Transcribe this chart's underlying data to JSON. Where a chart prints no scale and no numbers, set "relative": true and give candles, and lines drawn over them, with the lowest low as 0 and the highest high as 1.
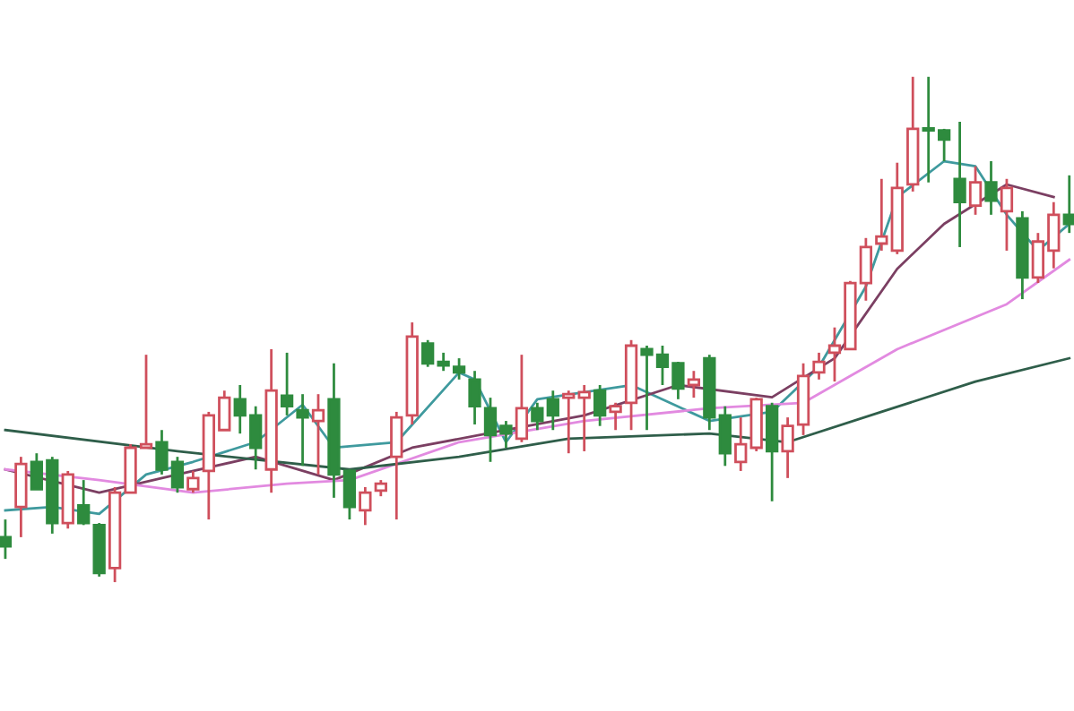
{
  "chart_data": {
    "type": "candlestick",
    "relative": true,
    "legend": false,
    "categories": [
      null,
      null,
      null,
      null,
      null,
      null,
      null,
      null,
      null,
      null,
      null,
      null,
      null,
      null,
      null,
      null,
      null,
      null,
      null,
      null,
      null,
      null,
      null,
      null,
      null,
      null,
      null,
      null,
      null,
      null,
      null,
      null,
      null,
      null,
      null,
      null,
      null,
      null,
      null,
      null,
      null,
      null,
      null,
      null,
      null,
      null,
      null,
      null,
      null,
      null,
      null,
      null,
      null,
      null,
      null,
      null,
      null,
      null,
      null,
      null,
      null,
      null,
      null,
      null,
      null,
      null,
      null,
      null,
      null
    ],
    "ohlc": [
      [
        0.089,
        0.124,
        0.046,
        0.071
      ],
      [
        0.149,
        0.248,
        0.089,
        0.234
      ],
      [
        0.238,
        0.255,
        0.184,
        0.184
      ],
      [
        0.241,
        0.248,
        0.096,
        0.117
      ],
      [
        0.117,
        0.22,
        0.106,
        0.213
      ],
      [
        0.152,
        0.202,
        0.113,
        0.117
      ],
      [
        0.113,
        0.117,
        0.011,
        0.018
      ],
      [
        0.028,
        0.188,
        0,
        0.177
      ],
      [
        0.177,
        0.273,
        0.177,
        0.266
      ],
      [
        0.266,
        0.45,
        0.266,
        0.273
      ],
      [
        0.277,
        0.301,
        0.213,
        0.223
      ],
      [
        0.238,
        0.248,
        0.177,
        0.188
      ],
      [
        0.184,
        0.22,
        0.177,
        0.206
      ],
      [
        0.22,
        0.337,
        0.124,
        0.33
      ],
      [
        0.301,
        0.379,
        0.301,
        0.365
      ],
      [
        0.362,
        0.39,
        0.294,
        0.33
      ],
      [
        0.33,
        0.348,
        0.223,
        0.266
      ],
      [
        0.223,
        0.461,
        0.177,
        0.379
      ],
      [
        0.369,
        0.454,
        0.33,
        0.348
      ],
      [
        0.34,
        0.372,
        0.23,
        0.326
      ],
      [
        0.319,
        0.372,
        0.213,
        0.34
      ],
      [
        0.362,
        0.433,
        0.167,
        0.213
      ],
      [
        0.22,
        0.223,
        0.124,
        0.149
      ],
      [
        0.142,
        0.188,
        0.113,
        0.177
      ],
      [
        0.181,
        0.202,
        0.17,
        0.195
      ],
      [
        0.248,
        0.337,
        0.124,
        0.326
      ],
      [
        0.33,
        0.514,
        0.312,
        0.486
      ],
      [
        0.472,
        0.479,
        0.426,
        0.433
      ],
      [
        0.436,
        0.454,
        0.418,
        0.429
      ],
      [
        0.426,
        0.443,
        0.401,
        0.415
      ],
      [
        0.401,
        0.418,
        0.312,
        0.348
      ],
      [
        0.344,
        0.365,
        0.238,
        0.291
      ],
      [
        0.309,
        0.319,
        0.266,
        0.294
      ],
      [
        0.284,
        0.45,
        0.277,
        0.344
      ],
      [
        0.344,
        0.355,
        0.301,
        0.319
      ],
      [
        0.362,
        0.379,
        0.301,
        0.33
      ],
      [
        0.365,
        0.379,
        0.255,
        0.372
      ],
      [
        0.365,
        0.39,
        0.259,
        0.376
      ],
      [
        0.379,
        0.39,
        0.309,
        0.33
      ],
      [
        0.337,
        0.355,
        0.301,
        0.348
      ],
      [
        0.355,
        0.479,
        0.301,
        0.468
      ],
      [
        0.461,
        0.468,
        0.301,
        0.45
      ],
      [
        0.45,
        0.468,
        0.39,
        0.426
      ],
      [
        0.433,
        0.436,
        0.362,
        0.383
      ],
      [
        0.39,
        0.418,
        0.365,
        0.401
      ],
      [
        0.443,
        0.45,
        0.301,
        0.326
      ],
      [
        0.33,
        0.348,
        0.23,
        0.255
      ],
      [
        0.238,
        0.326,
        0.22,
        0.273
      ],
      [
        0.266,
        0.365,
        0.259,
        0.362
      ],
      [
        0.348,
        0.355,
        0.16,
        0.259
      ],
      [
        0.259,
        0.326,
        0.206,
        0.309
      ],
      [
        0.312,
        0.433,
        0.291,
        0.408
      ],
      [
        0.415,
        0.454,
        0.401,
        0.436
      ],
      [
        0.454,
        0.504,
        0.397,
        0.468
      ],
      [
        0.461,
        0.596,
        0.461,
        0.592
      ],
      [
        0.592,
        0.681,
        0.557,
        0.663
      ],
      [
        0.67,
        0.798,
        0.656,
        0.684
      ],
      [
        0.656,
        0.83,
        0.649,
        0.78
      ],
      [
        0.787,
        1,
        0.773,
        0.897
      ],
      [
        0.897,
        1,
        0.791,
        0.894
      ],
      [
        0.894,
        0.897,
        0.833,
        0.876
      ],
      [
        0.798,
        0.911,
        0.663,
        0.752
      ],
      [
        0.745,
        0.823,
        0.727,
        0.791
      ],
      [
        0.791,
        0.833,
        0.727,
        0.755
      ],
      [
        0.734,
        0.798,
        0.656,
        0.78
      ],
      [
        0.72,
        0.734,
        0.56,
        0.603
      ],
      [
        0.603,
        0.691,
        0.592,
        0.674
      ],
      [
        0.656,
        0.752,
        0.621,
        0.727
      ],
      [
        0.727,
        0.805,
        0.691,
        0.709
      ]
    ],
    "series": [
      {
        "type": "line",
        "color": "#3f9a9e",
        "values": [
          0.142,
          null,
          null,
          0.149,
          null,
          null,
          0.135,
          null,
          null,
          0.213,
          null,
          null,
          0.238,
          null,
          null,
          null,
          0.277,
          null,
          null,
          0.351,
          null,
          0.266,
          null,
          null,
          null,
          0.277,
          null,
          null,
          null,
          0.415,
          0.401,
          null,
          0.277,
          null,
          0.362,
          null,
          null,
          null,
          null,
          null,
          0.39,
          null,
          null,
          null,
          null,
          0.319,
          null,
          null,
          null,
          0.337,
          null,
          null,
          0.426,
          null,
          null,
          0.585,
          null,
          0.762,
          null,
          null,
          0.833,
          null,
          0.823,
          null,
          0.727,
          null,
          0.656,
          null,
          0.709
        ]
      },
      {
        "type": "line",
        "color": "#7b3f62",
        "values": [
          0.223,
          null,
          null,
          null,
          null,
          null,
          0.177,
          null,
          null,
          null,
          null,
          0.213,
          null,
          null,
          null,
          null,
          0.248,
          null,
          null,
          null,
          null,
          0.202,
          null,
          null,
          null,
          null,
          0.266,
          null,
          null,
          null,
          null,
          null,
          0.301,
          null,
          null,
          null,
          null,
          0.33,
          null,
          null,
          null,
          null,
          null,
          0.39,
          null,
          null,
          null,
          null,
          null,
          0.366,
          null,
          null,
          null,
          0.443,
          null,
          null,
          null,
          0.62,
          null,
          null,
          0.709,
          null,
          null,
          null,
          0.787,
          null,
          null,
          0.762,
          null
        ]
      },
      {
        "type": "line",
        "color": "#e28ae0",
        "values": [
          0.223,
          null,
          null,
          null,
          null,
          null,
          0.202,
          null,
          null,
          null,
          null,
          null,
          0.177,
          null,
          null,
          null,
          null,
          null,
          0.195,
          null,
          null,
          null,
          0.202,
          null,
          null,
          null,
          null,
          null,
          null,
          0.277,
          null,
          null,
          null,
          null,
          null,
          null,
          null,
          0.319,
          null,
          null,
          null,
          null,
          null,
          null,
          null,
          0.344,
          null,
          null,
          null,
          null,
          null,
          0.355,
          null,
          null,
          null,
          null,
          null,
          0.461,
          null,
          null,
          null,
          null,
          null,
          null,
          0.55,
          null,
          null,
          null,
          0.638
        ]
      },
      {
        "type": "line",
        "color": "#2f5e4a",
        "values": [
          0.301,
          null,
          null,
          null,
          null,
          null,
          null,
          null,
          null,
          null,
          null,
          0.259,
          null,
          null,
          null,
          null,
          null,
          null,
          null,
          null,
          null,
          null,
          0.223,
          null,
          null,
          null,
          null,
          null,
          null,
          0.248,
          null,
          null,
          null,
          null,
          null,
          null,
          0.284,
          null,
          null,
          null,
          null,
          null,
          null,
          null,
          null,
          0.294,
          null,
          null,
          null,
          null,
          0.277,
          null,
          null,
          null,
          null,
          null,
          0.337,
          null,
          null,
          null,
          null,
          null,
          0.397,
          null,
          null,
          null,
          null,
          null,
          0.443
        ]
      }
    ]
  }
}
